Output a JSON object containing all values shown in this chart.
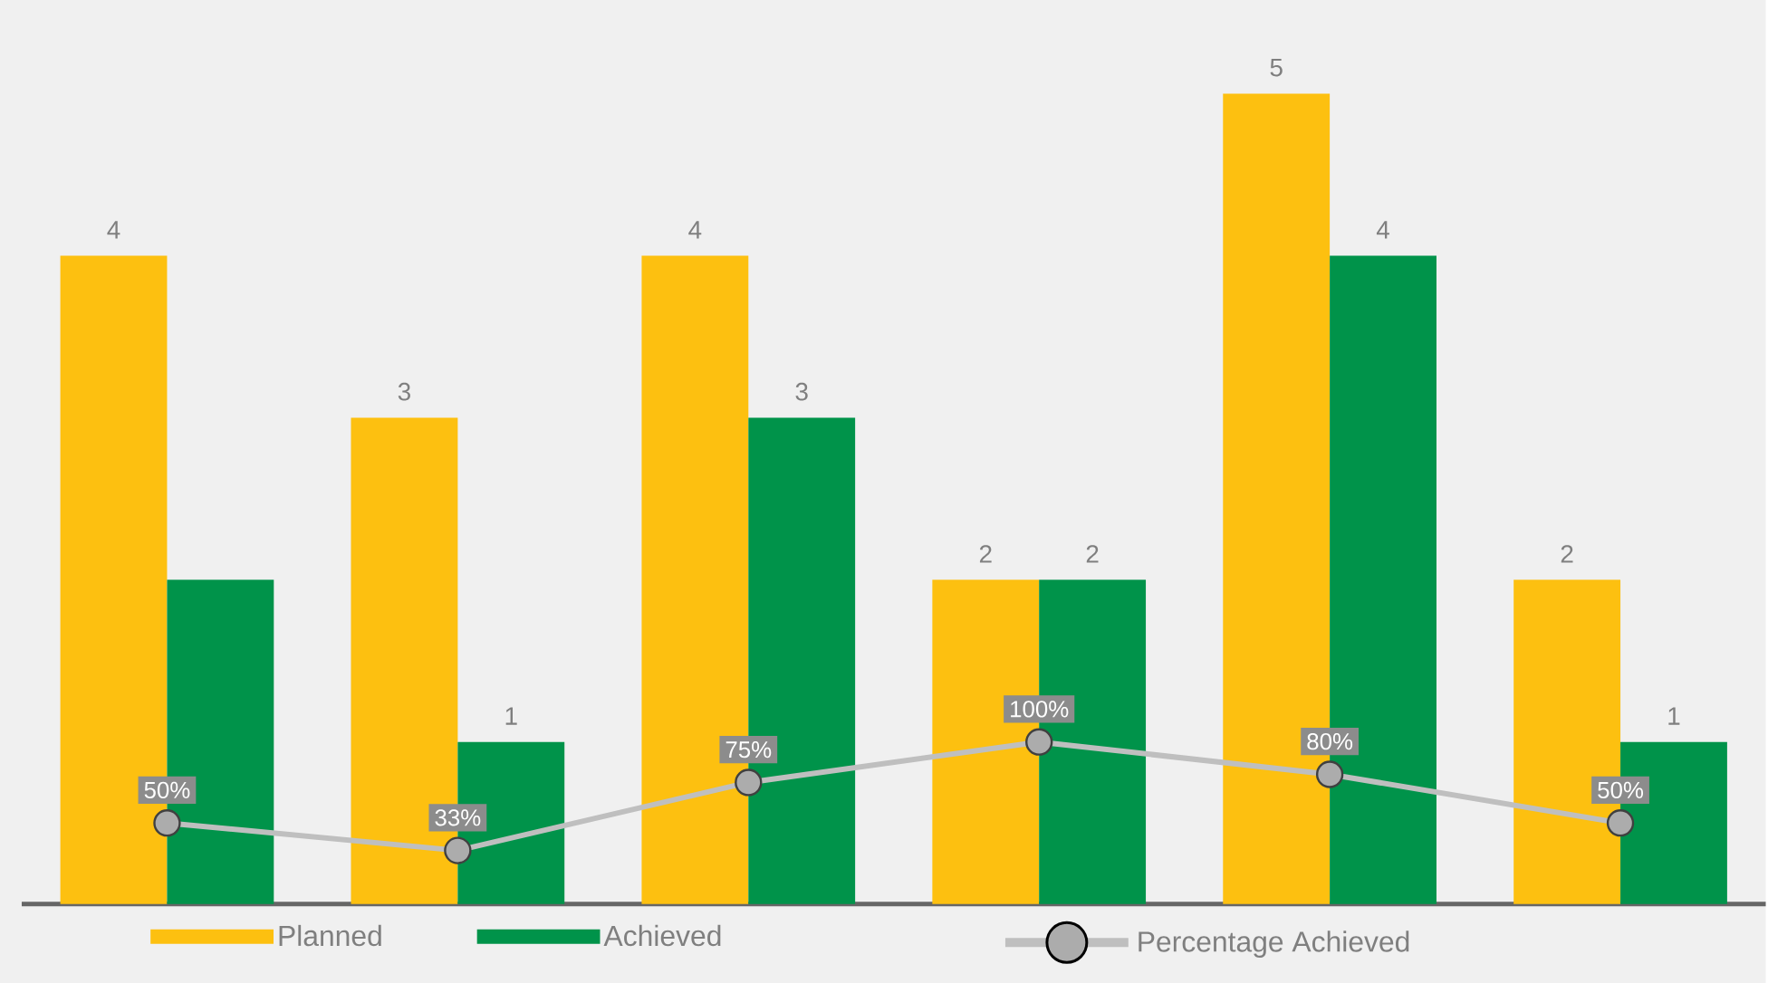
{
  "chart_data": [
    {
      "type": "bar",
      "categories": [
        null,
        null,
        null,
        null,
        null,
        null
      ],
      "legend": "bottom",
      "series": [
        {
          "name": "Planned",
          "color": "#fdc010",
          "values": [
            4,
            3,
            4,
            2,
            5,
            2
          ],
          "value_labels": [
            "4",
            "3",
            "4",
            "2",
            "5",
            "2"
          ]
        },
        {
          "name": "Achieved",
          "color": "#00934a",
          "values": [
            2,
            1,
            3,
            2,
            4,
            1
          ],
          "value_labels": [
            null,
            "1",
            "3",
            "2",
            "4",
            "1"
          ]
        }
      ]
    },
    {
      "type": "line",
      "categories": [
        null,
        null,
        null,
        null,
        null,
        null
      ],
      "legend": "bottom",
      "marker": "circle",
      "series": [
        {
          "name": "Percentage Achieved",
          "color": "#bfbfbf",
          "values": [
            50,
            33,
            75,
            100,
            80,
            50
          ],
          "value_labels": [
            "50%",
            "33%",
            "75%",
            "100%",
            "80%",
            "50%"
          ]
        }
      ]
    }
  ]
}
